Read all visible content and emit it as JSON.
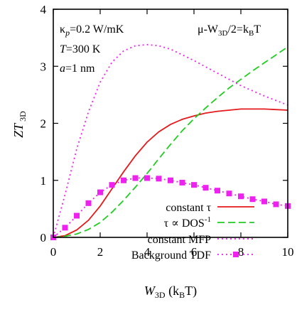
{
  "chart_data": {
    "type": "line",
    "xlabel_main": "W",
    "xlabel_sub": "3D",
    "xlabel_unit": " (k",
    "xlabel_unit_sub": "B",
    "xlabel_unit_end": "T)",
    "ylabel_main": "ZT",
    "ylabel_sub": " 3D",
    "xlim": [
      0,
      10
    ],
    "ylim": [
      0,
      4
    ],
    "xticks": [
      "0",
      "2",
      "4",
      "6",
      "8",
      "10"
    ],
    "yticks": [
      "0",
      "1",
      "2",
      "3",
      "4"
    ],
    "annotations": {
      "kappa_sym": "κ",
      "kappa_sub": "p",
      "kappa_val": "=0.2 W/mK",
      "temp_sym": "T",
      "temp_val": "=300 K",
      "a_sym": "a",
      "a_val": "=1 nm",
      "cond_a": "μ-W",
      "cond_sub": "3D",
      "cond_b": "/2=k",
      "cond_sub2": "B",
      "cond_c": "T"
    },
    "legend_position": "bottom-right",
    "series": [
      {
        "name": "constant τ",
        "color": "#e41a1c",
        "style": "solid",
        "x": [
          0,
          0.5,
          1,
          1.5,
          2,
          2.5,
          3,
          3.5,
          4,
          4.5,
          5,
          5.5,
          6,
          6.5,
          7,
          7.5,
          8,
          8.5,
          9,
          9.5,
          10
        ],
        "y": [
          0,
          0.03,
          0.13,
          0.3,
          0.55,
          0.85,
          1.15,
          1.43,
          1.67,
          1.85,
          1.98,
          2.07,
          2.13,
          2.18,
          2.21,
          2.23,
          2.25,
          2.25,
          2.25,
          2.24,
          2.23
        ]
      },
      {
        "name": "τ ∝ DOS",
        "name_sup": "-1",
        "color": "#22cc22",
        "style": "dashed",
        "x": [
          0,
          0.5,
          1,
          1.5,
          2,
          2.5,
          3,
          3.5,
          4,
          4.5,
          5,
          5.5,
          6,
          6.5,
          7,
          7.5,
          8,
          8.5,
          9,
          9.5,
          10
        ],
        "y": [
          0,
          0.02,
          0.06,
          0.14,
          0.26,
          0.44,
          0.65,
          0.88,
          1.12,
          1.38,
          1.63,
          1.87,
          2.08,
          2.27,
          2.45,
          2.62,
          2.77,
          2.92,
          3.06,
          3.2,
          3.34
        ]
      },
      {
        "name": "constant MFP",
        "color": "#ee22ee",
        "style": "dotted",
        "x": [
          0,
          0.5,
          1,
          1.5,
          2,
          2.5,
          3,
          3.5,
          4,
          4.5,
          5,
          5.5,
          6,
          6.5,
          7,
          7.5,
          8,
          8.5,
          9,
          9.5,
          10
        ],
        "y": [
          0,
          0.75,
          1.55,
          2.2,
          2.72,
          3.07,
          3.27,
          3.36,
          3.38,
          3.36,
          3.3,
          3.2,
          3.1,
          2.99,
          2.88,
          2.77,
          2.66,
          2.57,
          2.48,
          2.4,
          2.32
        ]
      },
      {
        "name": "Background TDF",
        "color": "#ee22ee",
        "style": "dotted-marker",
        "x": [
          0,
          0.5,
          1,
          1.5,
          2,
          2.5,
          3,
          3.5,
          4,
          4.5,
          5,
          5.5,
          6,
          6.5,
          7,
          7.5,
          8,
          8.5,
          9,
          9.5,
          10
        ],
        "y": [
          0,
          0.17,
          0.38,
          0.6,
          0.79,
          0.92,
          1.0,
          1.04,
          1.04,
          1.03,
          1.0,
          0.96,
          0.92,
          0.87,
          0.82,
          0.77,
          0.72,
          0.67,
          0.63,
          0.58,
          0.55
        ]
      }
    ]
  }
}
